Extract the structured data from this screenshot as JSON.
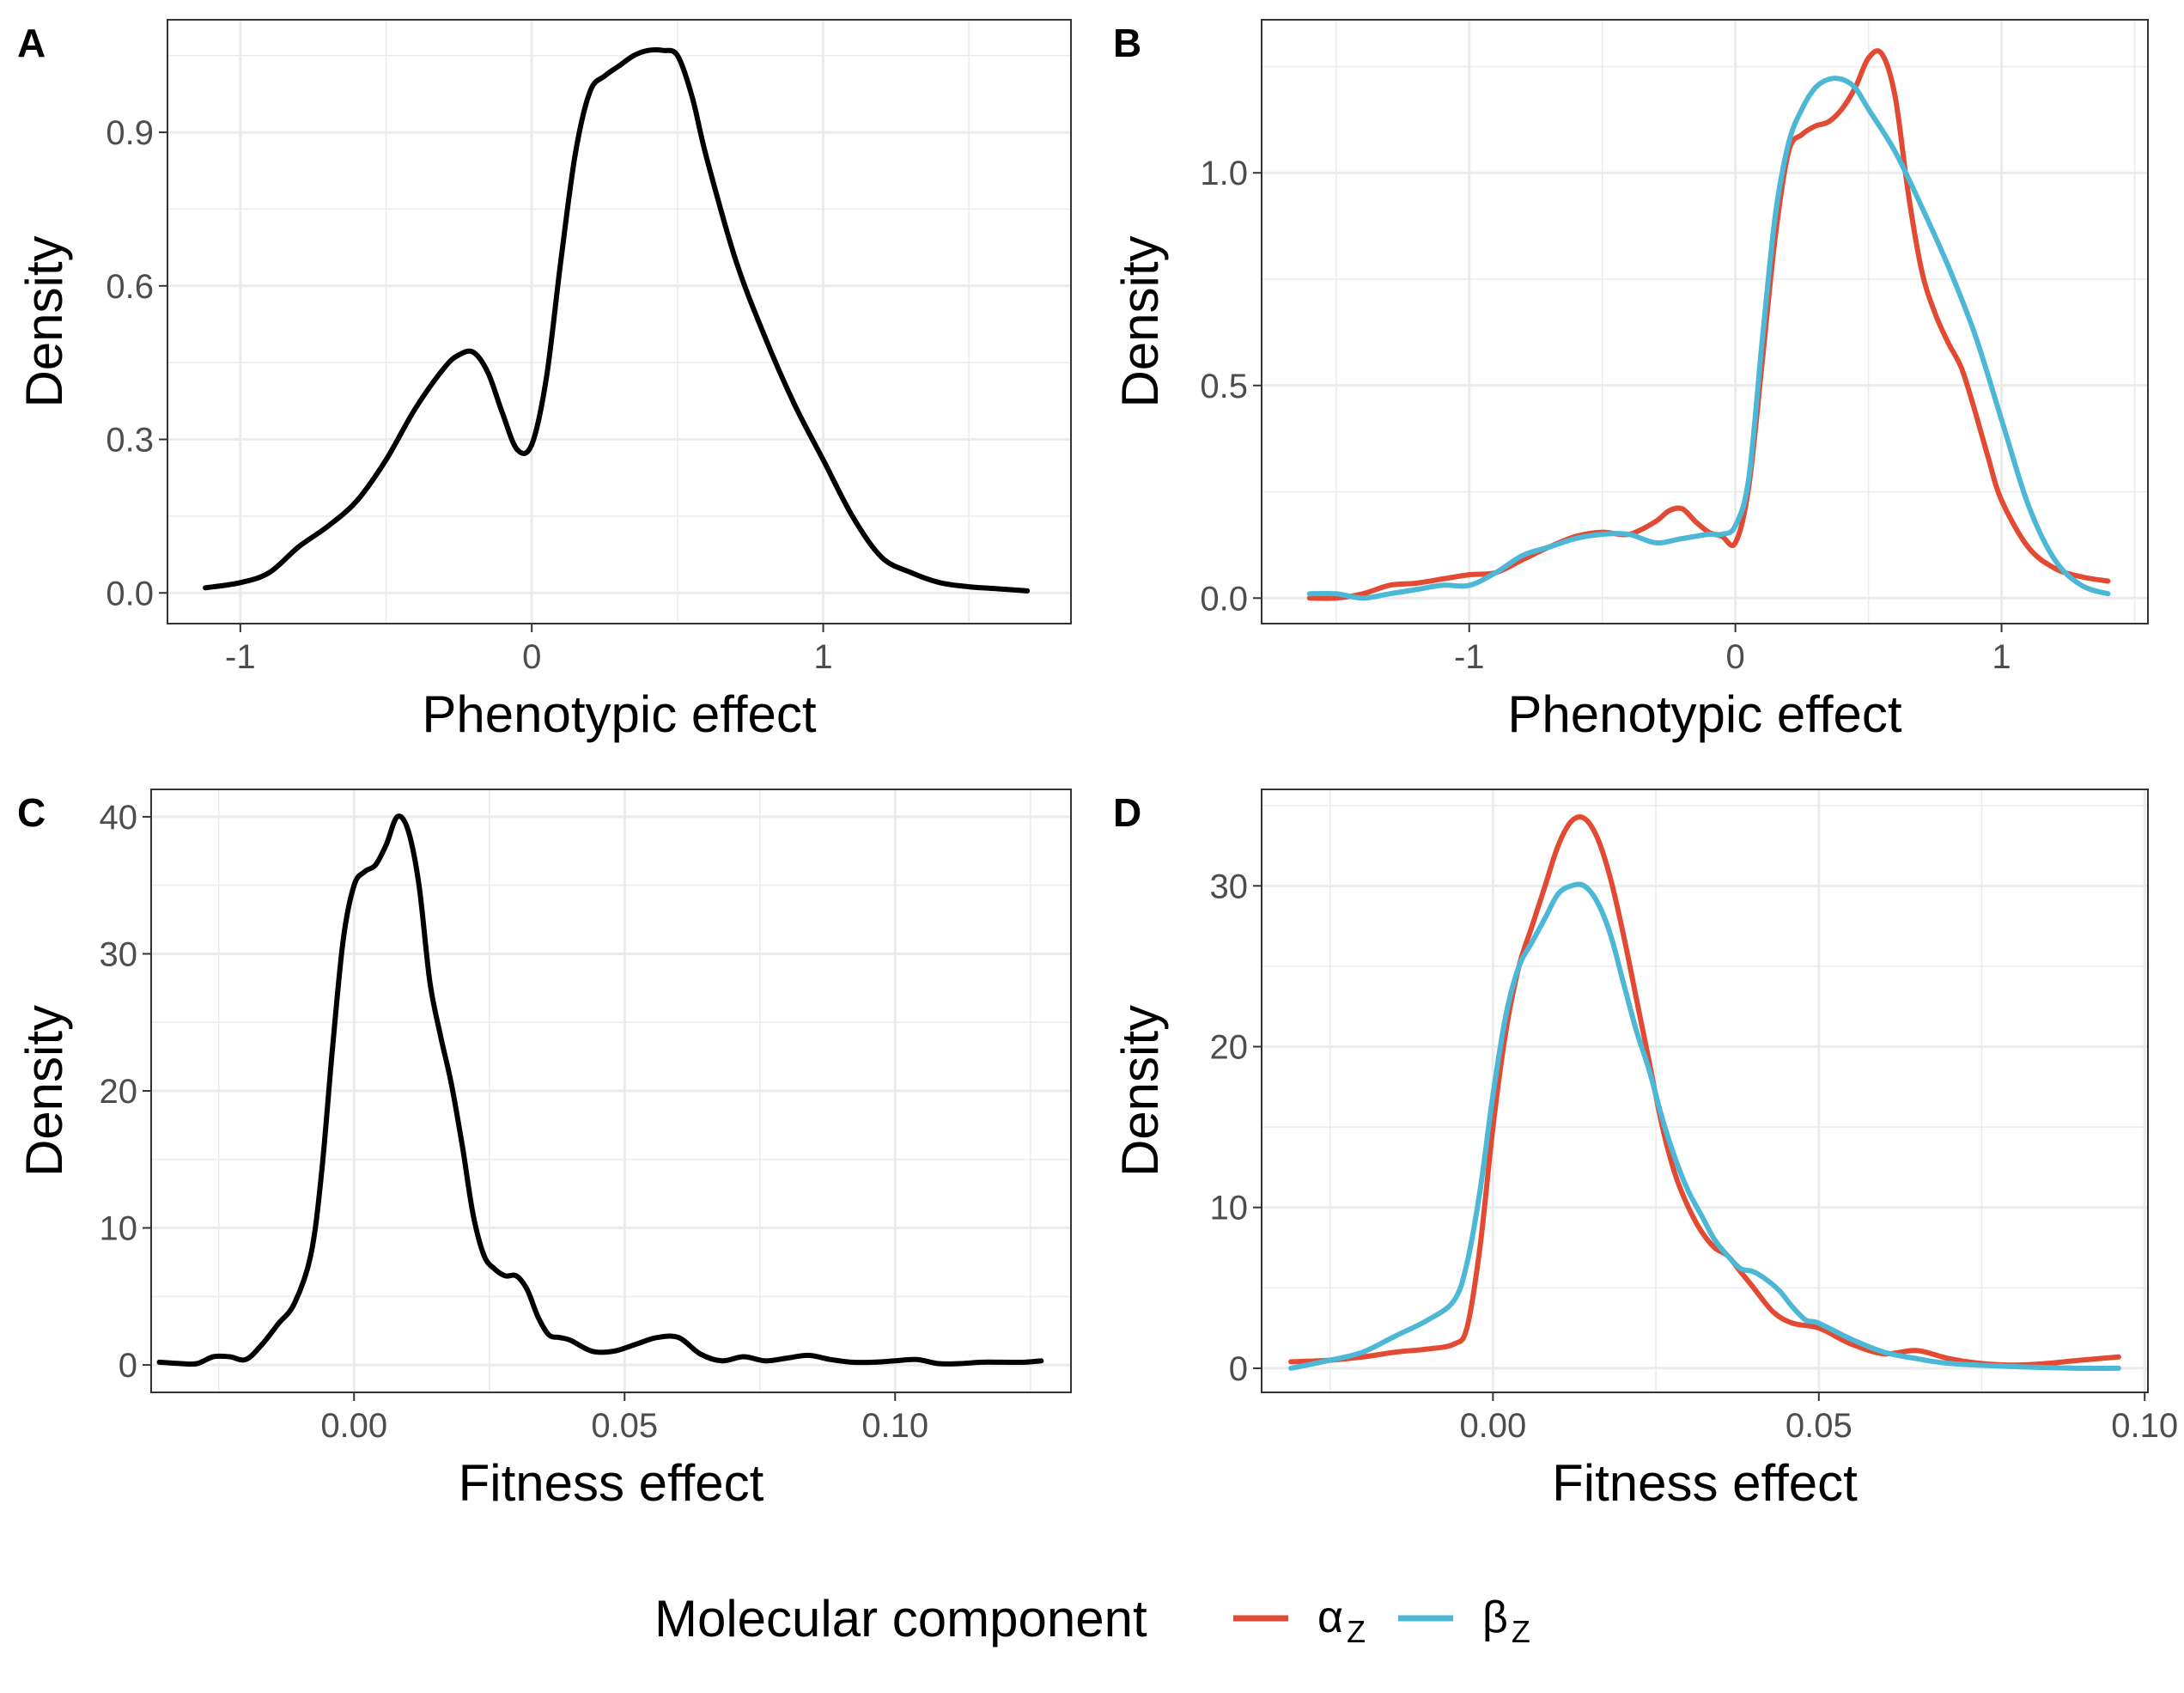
{
  "legend": {
    "title": "Molecular component",
    "entries": [
      {
        "symbol": "α",
        "subscript": "Z",
        "color": "#E34A33"
      },
      {
        "symbol": "β",
        "subscript": "Z",
        "color": "#4DB8D6"
      }
    ]
  },
  "colors": {
    "black_series": "#000000",
    "alpha_series": "#E34A33",
    "beta_series": "#4DB8D6",
    "panel_border": "#333333",
    "grid": "#EBEBEB",
    "tick_text": "#4D4D4D"
  },
  "chart_data": [
    {
      "panel": "A",
      "type": "line",
      "xlabel": "Phenotypic effect",
      "ylabel": "Density",
      "xlim": [
        -1.25,
        1.85
      ],
      "ylim": [
        -0.06,
        1.12
      ],
      "xticks": [
        -1,
        0,
        1
      ],
      "xtick_labels": [
        "-1",
        "0",
        "1"
      ],
      "yticks": [
        0.0,
        0.3,
        0.6,
        0.9
      ],
      "ytick_labels": [
        "0.0",
        "0.3",
        "0.6",
        "0.9"
      ],
      "grid": true,
      "series": [
        {
          "color": "#000000",
          "x": [
            -1.12,
            -1.0,
            -0.9,
            -0.8,
            -0.7,
            -0.6,
            -0.5,
            -0.4,
            -0.3,
            -0.25,
            -0.2,
            -0.15,
            -0.1,
            -0.05,
            0.0,
            0.05,
            0.1,
            0.15,
            0.2,
            0.25,
            0.3,
            0.35,
            0.4,
            0.45,
            0.5,
            0.55,
            0.6,
            0.7,
            0.8,
            0.9,
            1.0,
            1.1,
            1.2,
            1.3,
            1.4,
            1.5,
            1.6,
            1.7
          ],
          "y": [
            0.01,
            0.02,
            0.04,
            0.09,
            0.13,
            0.18,
            0.26,
            0.36,
            0.44,
            0.465,
            0.47,
            0.43,
            0.35,
            0.28,
            0.29,
            0.42,
            0.65,
            0.86,
            0.98,
            1.01,
            1.03,
            1.05,
            1.06,
            1.06,
            1.05,
            0.97,
            0.85,
            0.65,
            0.5,
            0.37,
            0.26,
            0.15,
            0.07,
            0.04,
            0.02,
            0.012,
            0.008,
            0.004
          ]
        }
      ]
    },
    {
      "panel": "B",
      "type": "line",
      "xlabel": "Phenotypic effect",
      "ylabel": "Density",
      "xlim": [
        -1.78,
        1.55
      ],
      "ylim": [
        -0.06,
        1.36
      ],
      "xticks": [
        -1,
        0,
        1
      ],
      "xtick_labels": [
        "-1",
        "0",
        "1"
      ],
      "yticks": [
        0.0,
        0.5,
        1.0
      ],
      "ytick_labels": [
        "0.0",
        "0.5",
        "1.0"
      ],
      "grid": true,
      "series": [
        {
          "color": "#E34A33",
          "x": [
            -1.6,
            -1.5,
            -1.4,
            -1.3,
            -1.2,
            -1.1,
            -1.0,
            -0.9,
            -0.8,
            -0.7,
            -0.6,
            -0.5,
            -0.4,
            -0.3,
            -0.25,
            -0.2,
            -0.15,
            -0.1,
            -0.05,
            0.0,
            0.05,
            0.1,
            0.15,
            0.2,
            0.25,
            0.3,
            0.35,
            0.4,
            0.45,
            0.5,
            0.55,
            0.6,
            0.65,
            0.7,
            0.75,
            0.8,
            0.85,
            0.9,
            0.95,
            1.0,
            1.1,
            1.2,
            1.3,
            1.4
          ],
          "y": [
            0.0,
            0.0,
            0.01,
            0.03,
            0.035,
            0.045,
            0.055,
            0.06,
            0.09,
            0.12,
            0.145,
            0.155,
            0.15,
            0.18,
            0.205,
            0.21,
            0.18,
            0.155,
            0.145,
            0.13,
            0.26,
            0.55,
            0.85,
            1.05,
            1.09,
            1.11,
            1.12,
            1.15,
            1.2,
            1.27,
            1.28,
            1.18,
            0.95,
            0.77,
            0.67,
            0.6,
            0.54,
            0.44,
            0.33,
            0.23,
            0.12,
            0.07,
            0.05,
            0.04
          ]
        },
        {
          "color": "#4DB8D6",
          "x": [
            -1.6,
            -1.5,
            -1.4,
            -1.3,
            -1.2,
            -1.1,
            -1.0,
            -0.9,
            -0.8,
            -0.7,
            -0.6,
            -0.5,
            -0.4,
            -0.3,
            -0.2,
            -0.1,
            -0.05,
            0.0,
            0.05,
            0.1,
            0.15,
            0.2,
            0.25,
            0.3,
            0.35,
            0.4,
            0.45,
            0.5,
            0.6,
            0.7,
            0.8,
            0.9,
            1.0,
            1.1,
            1.2,
            1.3,
            1.4
          ],
          "y": [
            0.01,
            0.01,
            0.0,
            0.01,
            0.02,
            0.03,
            0.03,
            0.06,
            0.1,
            0.12,
            0.14,
            0.15,
            0.15,
            0.13,
            0.14,
            0.15,
            0.15,
            0.17,
            0.28,
            0.6,
            0.9,
            1.07,
            1.15,
            1.2,
            1.22,
            1.22,
            1.2,
            1.15,
            1.05,
            0.92,
            0.78,
            0.62,
            0.42,
            0.22,
            0.09,
            0.03,
            0.01
          ]
        }
      ]
    },
    {
      "panel": "C",
      "type": "line",
      "xlabel": "Fitness effect",
      "ylabel": "Density",
      "xlim": [
        -0.0375,
        0.1325
      ],
      "ylim": [
        -2,
        42
      ],
      "xticks": [
        0.0,
        0.05,
        0.1
      ],
      "xtick_labels": [
        "0.00",
        "0.05",
        "0.10"
      ],
      "yticks": [
        0,
        10,
        20,
        30,
        40
      ],
      "ytick_labels": [
        "0",
        "10",
        "20",
        "30",
        "40"
      ],
      "grid": true,
      "series": [
        {
          "color": "#000000",
          "x": [
            -0.036,
            -0.032,
            -0.029,
            -0.026,
            -0.023,
            -0.02,
            -0.017,
            -0.014,
            -0.011,
            -0.008,
            -0.006,
            -0.004,
            -0.002,
            0.0,
            0.002,
            0.004,
            0.006,
            0.008,
            0.01,
            0.012,
            0.014,
            0.016,
            0.018,
            0.02,
            0.022,
            0.024,
            0.026,
            0.028,
            0.03,
            0.032,
            0.034,
            0.036,
            0.038,
            0.04,
            0.044,
            0.048,
            0.052,
            0.056,
            0.06,
            0.064,
            0.068,
            0.072,
            0.076,
            0.08,
            0.084,
            0.088,
            0.092,
            0.096,
            0.1,
            0.104,
            0.108,
            0.112,
            0.116,
            0.12,
            0.124,
            0.127
          ],
          "y": [
            0.2,
            0.1,
            0.1,
            0.6,
            0.6,
            0.4,
            1.5,
            3.0,
            4.5,
            8.0,
            14.0,
            23.0,
            31.0,
            35.0,
            36.0,
            36.5,
            38.0,
            40.0,
            39.0,
            35.0,
            28.0,
            24.0,
            20.5,
            16.0,
            11.0,
            8.0,
            7.0,
            6.5,
            6.5,
            5.5,
            3.5,
            2.2,
            2.0,
            1.8,
            1.0,
            1.0,
            1.5,
            2.0,
            2.0,
            0.8,
            0.3,
            0.6,
            0.3,
            0.5,
            0.7,
            0.4,
            0.2,
            0.2,
            0.3,
            0.4,
            0.1,
            0.1,
            0.2,
            0.2,
            0.2,
            0.3
          ]
        }
      ]
    },
    {
      "panel": "D",
      "type": "line",
      "xlabel": "Fitness effect",
      "ylabel": "Density",
      "xlim": [
        -0.0355,
        0.1005
      ],
      "ylim": [
        -1.5,
        36
      ],
      "xticks": [
        0.0,
        0.05,
        0.1
      ],
      "xtick_labels": [
        "0.00",
        "0.05",
        "0.10"
      ],
      "yticks": [
        0,
        10,
        20,
        30
      ],
      "ytick_labels": [
        "0",
        "10",
        "20",
        "30"
      ],
      "grid": true,
      "series": [
        {
          "color": "#E34A33",
          "x": [
            -0.031,
            -0.025,
            -0.02,
            -0.015,
            -0.01,
            -0.006,
            -0.004,
            -0.002,
            0.0,
            0.002,
            0.004,
            0.006,
            0.008,
            0.01,
            0.012,
            0.014,
            0.016,
            0.018,
            0.02,
            0.022,
            0.024,
            0.026,
            0.028,
            0.03,
            0.032,
            0.034,
            0.036,
            0.038,
            0.04,
            0.043,
            0.046,
            0.05,
            0.055,
            0.06,
            0.065,
            0.07,
            0.075,
            0.08,
            0.085,
            0.09,
            0.096
          ],
          "y": [
            0.4,
            0.5,
            0.7,
            1.0,
            1.2,
            1.5,
            2.5,
            7.5,
            15.0,
            21.0,
            25.0,
            27.5,
            30.0,
            32.5,
            34.0,
            34.2,
            33.0,
            30.5,
            27.0,
            23.0,
            19.0,
            15.0,
            12.0,
            10.0,
            8.5,
            7.5,
            7.0,
            6.0,
            5.0,
            3.5,
            2.8,
            2.5,
            1.5,
            0.9,
            1.1,
            0.6,
            0.3,
            0.2,
            0.3,
            0.5,
            0.7
          ]
        },
        {
          "color": "#4DB8D6",
          "x": [
            -0.031,
            -0.025,
            -0.02,
            -0.015,
            -0.01,
            -0.006,
            -0.004,
            -0.002,
            0.0,
            0.002,
            0.004,
            0.006,
            0.008,
            0.01,
            0.012,
            0.014,
            0.016,
            0.018,
            0.02,
            0.022,
            0.024,
            0.026,
            0.028,
            0.03,
            0.032,
            0.034,
            0.036,
            0.038,
            0.04,
            0.042,
            0.044,
            0.046,
            0.048,
            0.05,
            0.055,
            0.06,
            0.065,
            0.07,
            0.08,
            0.09,
            0.096
          ],
          "y": [
            0.0,
            0.5,
            1.0,
            2.0,
            3.0,
            4.2,
            6.5,
            11.0,
            17.0,
            22.0,
            25.0,
            26.5,
            28.0,
            29.5,
            30.0,
            30.0,
            29.0,
            27.0,
            24.0,
            21.0,
            18.5,
            15.5,
            13.0,
            11.0,
            9.5,
            8.0,
            7.0,
            6.2,
            6.0,
            5.5,
            4.8,
            3.8,
            3.0,
            2.8,
            1.8,
            1.0,
            0.6,
            0.3,
            0.1,
            0.0,
            0.0
          ]
        }
      ]
    }
  ]
}
